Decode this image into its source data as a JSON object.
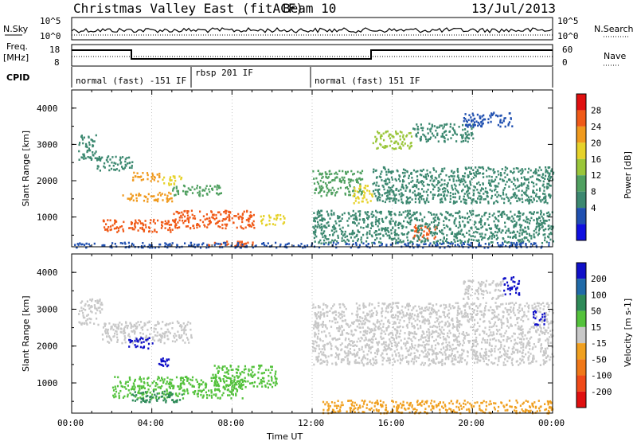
{
  "header": {
    "title": "Christmas Valley East (fitACF)",
    "beam": "Beam 10",
    "date": "13/Jul/2013"
  },
  "panels": {
    "nsky": {
      "label": "N.Sky",
      "right_label": "N.Search",
      "ticks": [
        "10^5",
        "10^0"
      ]
    },
    "freq": {
      "label_line1": "Freq.",
      "label_line2": "[MHz]",
      "right_label": "Nave",
      "left_ticks": [
        "18",
        "8"
      ],
      "right_ticks": [
        "60",
        "0"
      ]
    },
    "cpid": {
      "label": "CPID",
      "modes": [
        "normal (fast) -151 IF",
        "rbsp 201 IF",
        "normal (fast) 151 IF"
      ]
    }
  },
  "colors": {
    "power": [
      "#1010e0",
      "#2050b0",
      "#3c8870",
      "#50a060",
      "#9ac63a",
      "#e6d22a",
      "#f09a1e",
      "#f05a18",
      "#e01010"
    ],
    "velocity": [
      "#1010c8",
      "#206aa8",
      "#2e8a58",
      "#54c23c",
      "#c8c8c8",
      "#f0a020",
      "#f07818",
      "#f04a18",
      "#e01010"
    ]
  },
  "chart_data": [
    {
      "type": "heatmap",
      "quantity": "Power",
      "xlabel": "Time UT",
      "ylabel": "Slant Range [km]",
      "colorbar_label": "Power [dB]",
      "colorbar_ticks": [
        "28",
        "24",
        "20",
        "16",
        "12",
        "8",
        "4"
      ],
      "xticks": [
        "00:00",
        "04:00",
        "08:00",
        "12:00",
        "16:00",
        "20:00",
        "00:00"
      ],
      "yticks": [
        "1000",
        "2000",
        "3000",
        "4000"
      ],
      "x_range_hours": [
        0,
        24
      ],
      "y_range_km": [
        180,
        4500
      ],
      "regions": [
        {
          "t0": 0.3,
          "t1": 1.2,
          "r0": 2600,
          "r1": 3300,
          "value": 8
        },
        {
          "t0": 1.2,
          "t1": 3.0,
          "r0": 2300,
          "r1": 2700,
          "value": 10
        },
        {
          "t0": 2.8,
          "t1": 4.4,
          "r0": 2000,
          "r1": 2250,
          "value": 22
        },
        {
          "t0": 4.5,
          "t1": 5.5,
          "r0": 1900,
          "r1": 2150,
          "value": 20
        },
        {
          "t0": 2.5,
          "t1": 5.0,
          "r0": 1450,
          "r1": 1700,
          "value": 24
        },
        {
          "t0": 5.0,
          "t1": 7.5,
          "r0": 1600,
          "r1": 1900,
          "value": 14
        },
        {
          "t0": 1.5,
          "t1": 5.0,
          "r0": 600,
          "r1": 950,
          "value": 28
        },
        {
          "t0": 5.0,
          "t1": 9.2,
          "r0": 700,
          "r1": 1200,
          "value": 28
        },
        {
          "t0": 9.3,
          "t1": 10.6,
          "r0": 800,
          "r1": 1100,
          "value": 20
        },
        {
          "t0": 6.5,
          "t1": 9.0,
          "r0": 200,
          "r1": 350,
          "value": 26
        },
        {
          "t0": 12.0,
          "t1": 14.5,
          "r0": 1600,
          "r1": 2300,
          "value": 12
        },
        {
          "t0": 14.0,
          "t1": 15.0,
          "r0": 1400,
          "r1": 1900,
          "value": 20
        },
        {
          "t0": 15.0,
          "t1": 24.0,
          "r0": 1400,
          "r1": 2400,
          "value": 10
        },
        {
          "t0": 15.0,
          "t1": 17.0,
          "r0": 2900,
          "r1": 3400,
          "value": 16
        },
        {
          "t0": 17.0,
          "t1": 20.0,
          "r0": 3100,
          "r1": 3600,
          "value": 8
        },
        {
          "t0": 19.5,
          "t1": 22.0,
          "r0": 3500,
          "r1": 3900,
          "value": 6
        },
        {
          "t0": 17.0,
          "t1": 18.2,
          "r0": 400,
          "r1": 800,
          "value": 28
        },
        {
          "t0": 12.0,
          "t1": 24.0,
          "r0": 300,
          "r1": 1200,
          "value": 8
        },
        {
          "t0": 0.0,
          "t1": 24.0,
          "r0": 180,
          "r1": 320,
          "value": 6
        }
      ]
    },
    {
      "type": "heatmap",
      "quantity": "Velocity",
      "xlabel": "Time UT",
      "ylabel": "Slant Range [km]",
      "colorbar_label": "Velocity [m s-1]",
      "colorbar_ticks": [
        "200",
        "100",
        "50",
        "15",
        "-15",
        "-50",
        "-100",
        "-200"
      ],
      "xticks": [
        "00:00",
        "04:00",
        "08:00",
        "12:00",
        "16:00",
        "20:00",
        "00:00"
      ],
      "yticks": [
        "1000",
        "2000",
        "3000",
        "4000"
      ],
      "x_range_hours": [
        0,
        24
      ],
      "y_range_km": [
        180,
        4500
      ],
      "regions": [
        {
          "t0": 0.3,
          "t1": 1.5,
          "r0": 2600,
          "r1": 3300,
          "value": 0
        },
        {
          "t0": 1.5,
          "t1": 6.0,
          "r0": 2100,
          "r1": 2700,
          "value": 0
        },
        {
          "t0": 2.8,
          "t1": 4.0,
          "r0": 1950,
          "r1": 2250,
          "value": 200
        },
        {
          "t0": 4.3,
          "t1": 4.9,
          "r0": 1450,
          "r1": 1700,
          "value": 200
        },
        {
          "t0": 2.0,
          "t1": 8.5,
          "r0": 600,
          "r1": 1200,
          "value": 50
        },
        {
          "t0": 3.0,
          "t1": 5.5,
          "r0": 500,
          "r1": 800,
          "value": 100
        },
        {
          "t0": 7.0,
          "t1": 10.2,
          "r0": 900,
          "r1": 1500,
          "value": 50
        },
        {
          "t0": 12.5,
          "t1": 24.0,
          "r0": 200,
          "r1": 550,
          "value": -80
        },
        {
          "t0": 12.0,
          "t1": 24.0,
          "r0": 1500,
          "r1": 3200,
          "value": 0
        },
        {
          "t0": 19.5,
          "t1": 21.5,
          "r0": 3300,
          "r1": 3800,
          "value": 0
        },
        {
          "t0": 21.5,
          "t1": 22.3,
          "r0": 3400,
          "r1": 3900,
          "value": 200
        },
        {
          "t0": 23.0,
          "t1": 23.6,
          "r0": 2600,
          "r1": 3000,
          "value": 200
        }
      ]
    }
  ]
}
